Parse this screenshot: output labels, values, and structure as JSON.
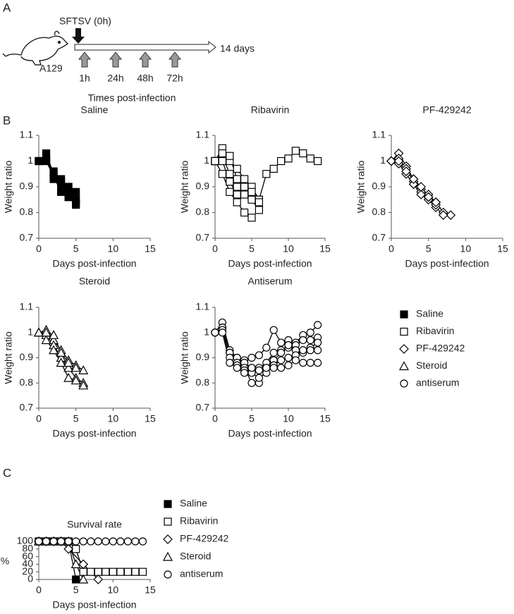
{
  "panel_labels": {
    "a": "A",
    "b": "B",
    "c": "C"
  },
  "panel_a": {
    "virus": "SFTSV (0h)",
    "strain": "A129",
    "duration": "14 days",
    "timepoints": [
      "1h",
      "24h",
      "48h",
      "72h"
    ],
    "timeline_label": "Times post-infection"
  },
  "panel_b_legend": [
    {
      "label": "Saline",
      "marker": "square",
      "fill": "#000000"
    },
    {
      "label": "Ribavirin",
      "marker": "square",
      "fill": "#ffffff"
    },
    {
      "label": "PF-429242",
      "marker": "diamond",
      "fill": "#ffffff"
    },
    {
      "label": "Steroid",
      "marker": "triangle",
      "fill": "#ffffff"
    },
    {
      "label": "antiserum",
      "marker": "circle",
      "fill": "#ffffff"
    }
  ],
  "chart_data": [
    {
      "type": "line",
      "title": "Saline",
      "x_label": "Days post-infection",
      "y_label": "Weight ratio",
      "xlim": [
        0,
        15
      ],
      "xticks": [
        0,
        5,
        10,
        15
      ],
      "ylim": [
        0.7,
        1.1
      ],
      "yticks": [
        0.7,
        0.8,
        0.9,
        1,
        1.1
      ],
      "marker": "square",
      "fill": "#000000",
      "color": "#000000",
      "series": [
        {
          "x": [
            0,
            1,
            2,
            3,
            4,
            5
          ],
          "values": [
            1,
            1.03,
            0.95,
            0.92,
            0.88,
            0.85
          ]
        },
        {
          "x": [
            0,
            1,
            2,
            3,
            4,
            5
          ],
          "values": [
            1,
            1.0,
            0.96,
            0.93,
            0.9,
            0.88
          ]
        },
        {
          "x": [
            0,
            1,
            2,
            3,
            4,
            5
          ],
          "values": [
            1,
            1.01,
            0.93,
            0.9,
            0.86,
            0.84
          ]
        },
        {
          "x": [
            0,
            1,
            2,
            3,
            4,
            5
          ],
          "values": [
            1,
            1.0,
            0.94,
            0.88,
            0.86,
            0.83
          ]
        }
      ]
    },
    {
      "type": "line",
      "title": "Ribavirin",
      "x_label": "Days post-infection",
      "y_label": "Weight ratio",
      "xlim": [
        0,
        15
      ],
      "xticks": [
        0,
        5,
        10,
        15
      ],
      "ylim": [
        0.7,
        1.1
      ],
      "yticks": [
        0.7,
        0.8,
        0.9,
        1,
        1.1
      ],
      "marker": "square",
      "fill": "#ffffff",
      "color": "#000000",
      "series": [
        {
          "x": [
            0,
            1,
            2,
            3,
            4,
            5,
            6,
            7,
            8,
            9,
            10,
            11,
            12,
            13,
            14
          ],
          "values": [
            1,
            1.05,
            1.0,
            0.97,
            0.93,
            0.9,
            0.85,
            0.95,
            0.97,
            1.0,
            1.01,
            1.04,
            1.03,
            1.01,
            1.0
          ]
        },
        {
          "x": [
            0,
            1,
            2,
            3,
            4,
            5,
            6
          ],
          "values": [
            1,
            1.02,
            0.95,
            0.9,
            0.88,
            0.86,
            0.85
          ]
        },
        {
          "x": [
            0,
            1,
            2,
            3,
            4,
            5,
            6
          ],
          "values": [
            1,
            1.0,
            0.92,
            0.87,
            0.87,
            0.85,
            0.81
          ]
        },
        {
          "x": [
            0,
            1,
            2,
            3,
            4,
            5
          ],
          "values": [
            1,
            0.95,
            0.88,
            0.84,
            0.8,
            0.78
          ]
        },
        {
          "x": [
            0,
            1,
            2,
            3,
            4,
            5,
            6
          ],
          "values": [
            1,
            1.03,
            1.02,
            0.93,
            0.9,
            0.88,
            0.84
          ]
        }
      ]
    },
    {
      "type": "line",
      "title": "PF-429242",
      "x_label": "Days post-infection",
      "y_label": "Weight ratio",
      "xlim": [
        0,
        15
      ],
      "xticks": [
        0,
        5,
        10,
        15
      ],
      "ylim": [
        0.7,
        1.1
      ],
      "yticks": [
        0.7,
        0.8,
        0.9,
        1,
        1.1
      ],
      "marker": "diamond",
      "fill": "#ffffff",
      "color": "#000000",
      "series": [
        {
          "x": [
            0,
            1,
            2,
            3,
            4,
            5,
            6,
            7,
            8
          ],
          "values": [
            1,
            1.03,
            0.98,
            0.93,
            0.89,
            0.87,
            0.84,
            0.8,
            0.79
          ]
        },
        {
          "x": [
            0,
            1,
            2,
            3,
            4,
            5,
            6,
            7
          ],
          "values": [
            1,
            1.01,
            0.97,
            0.92,
            0.88,
            0.85,
            0.82,
            0.79
          ]
        },
        {
          "x": [
            0,
            1,
            2,
            3,
            4,
            5,
            6
          ],
          "values": [
            1,
            0.99,
            0.95,
            0.91,
            0.87,
            0.86,
            0.83
          ]
        },
        {
          "x": [
            0,
            1,
            2,
            3,
            4,
            5,
            6
          ],
          "values": [
            1,
            1.0,
            0.96,
            0.93,
            0.9,
            0.86,
            0.84
          ]
        }
      ]
    },
    {
      "type": "line",
      "title": "Steroid",
      "x_label": "Days post-infection",
      "y_label": "Weight ratio",
      "xlim": [
        0,
        15
      ],
      "xticks": [
        0,
        5,
        10,
        15
      ],
      "ylim": [
        0.7,
        1.1
      ],
      "yticks": [
        0.7,
        0.8,
        0.9,
        1,
        1.1
      ],
      "marker": "triangle",
      "fill": "#ffffff",
      "color": "#000000",
      "series": [
        {
          "x": [
            0,
            1,
            2,
            3,
            4,
            5,
            6
          ],
          "values": [
            1,
            1.01,
            0.97,
            0.93,
            0.89,
            0.87,
            0.85
          ]
        },
        {
          "x": [
            0,
            1,
            2,
            3,
            4,
            5,
            6
          ],
          "values": [
            1,
            0.99,
            0.95,
            0.9,
            0.86,
            0.82,
            0.8
          ]
        },
        {
          "x": [
            0,
            1,
            2,
            3,
            4,
            5,
            6
          ],
          "values": [
            1,
            0.97,
            0.93,
            0.88,
            0.82,
            0.81,
            0.79
          ]
        },
        {
          "x": [
            0,
            1,
            2,
            3,
            4,
            5
          ],
          "values": [
            1,
            1.0,
            0.99,
            0.92,
            0.88,
            0.86
          ]
        }
      ]
    },
    {
      "type": "line",
      "title": "Antiserum",
      "x_label": "Days post-infection",
      "y_label": "Weight ratio",
      "xlim": [
        0,
        15
      ],
      "xticks": [
        0,
        5,
        10,
        15
      ],
      "ylim": [
        0.7,
        1.1
      ],
      "yticks": [
        0.7,
        0.8,
        0.9,
        1,
        1.1
      ],
      "marker": "circle",
      "fill": "#ffffff",
      "color": "#000000",
      "series": [
        {
          "x": [
            0,
            1,
            2,
            3,
            4,
            5,
            6,
            7,
            8,
            9,
            10,
            11,
            12,
            13,
            14
          ],
          "values": [
            1,
            1.04,
            0.93,
            0.9,
            0.89,
            0.9,
            0.91,
            0.94,
            1.01,
            0.96,
            0.97,
            0.96,
            0.99,
            1.0,
            1.03
          ]
        },
        {
          "x": [
            0,
            1,
            2,
            3,
            4,
            5,
            6,
            7,
            8,
            9,
            10,
            11,
            12,
            13,
            14
          ],
          "values": [
            1,
            1.02,
            0.92,
            0.9,
            0.88,
            0.86,
            0.86,
            0.88,
            0.92,
            0.93,
            0.94,
            0.95,
            0.97,
            0.97,
            0.98
          ]
        },
        {
          "x": [
            0,
            1,
            2,
            3,
            4,
            5,
            6,
            7,
            8,
            9,
            10,
            11,
            12,
            13,
            14
          ],
          "values": [
            1,
            1.02,
            0.92,
            0.88,
            0.86,
            0.8,
            0.8,
            0.86,
            0.89,
            0.92,
            0.95,
            0.93,
            0.92,
            0.94,
            0.96
          ]
        },
        {
          "x": [
            0,
            1,
            2,
            3,
            4,
            5,
            6,
            7,
            8,
            9,
            10,
            11,
            12,
            13,
            14
          ],
          "values": [
            1,
            1.01,
            0.9,
            0.87,
            0.85,
            0.84,
            0.82,
            0.84,
            0.87,
            0.89,
            0.9,
            0.91,
            0.93,
            0.93,
            0.93
          ]
        },
        {
          "x": [
            0,
            1,
            2,
            3,
            4,
            5,
            6,
            7,
            8,
            9,
            10,
            11,
            12,
            13,
            14
          ],
          "values": [
            1,
            1.0,
            0.88,
            0.86,
            0.84,
            0.86,
            0.85,
            0.86,
            0.86,
            0.86,
            0.87,
            0.89,
            0.88,
            0.88,
            0.88
          ]
        }
      ]
    },
    {
      "type": "line",
      "title": "Survival rate",
      "x_label": "Days post-infection",
      "y_label": "%",
      "xlim": [
        0,
        15
      ],
      "xticks": [
        0,
        5,
        10,
        15
      ],
      "ylim": [
        0,
        100
      ],
      "yticks": [
        0,
        20,
        40,
        60,
        80,
        100
      ],
      "color": "#000000",
      "legend": "right",
      "series": [
        {
          "name": "Saline",
          "marker": "square",
          "fill": "#000000",
          "x": [
            0,
            1,
            2,
            3,
            4,
            5
          ],
          "values": [
            100,
            100,
            100,
            100,
            100,
            0
          ]
        },
        {
          "name": "Ribavirin",
          "marker": "square",
          "fill": "#ffffff",
          "x": [
            0,
            1,
            2,
            3,
            4,
            5,
            6,
            7,
            8,
            9,
            10,
            11,
            12,
            13,
            14
          ],
          "values": [
            100,
            100,
            100,
            100,
            100,
            80,
            20,
            20,
            20,
            20,
            20,
            20,
            20,
            20,
            20
          ]
        },
        {
          "name": "PF-429242",
          "marker": "diamond",
          "fill": "#ffffff",
          "x": [
            0,
            1,
            2,
            3,
            4,
            6,
            8
          ],
          "values": [
            100,
            100,
            100,
            100,
            80,
            40,
            0
          ]
        },
        {
          "name": "Steroid",
          "marker": "triangle",
          "fill": "#ffffff",
          "x": [
            0,
            1,
            2,
            3,
            4,
            5,
            6
          ],
          "values": [
            100,
            100,
            100,
            100,
            100,
            40,
            0
          ]
        },
        {
          "name": "antiserum",
          "marker": "circle",
          "fill": "#ffffff",
          "x": [
            0,
            1,
            2,
            3,
            4,
            5,
            6,
            7,
            8,
            9,
            10,
            11,
            12,
            13,
            14
          ],
          "values": [
            100,
            100,
            100,
            100,
            100,
            100,
            100,
            100,
            100,
            100,
            100,
            100,
            100,
            100,
            100
          ]
        }
      ]
    }
  ]
}
